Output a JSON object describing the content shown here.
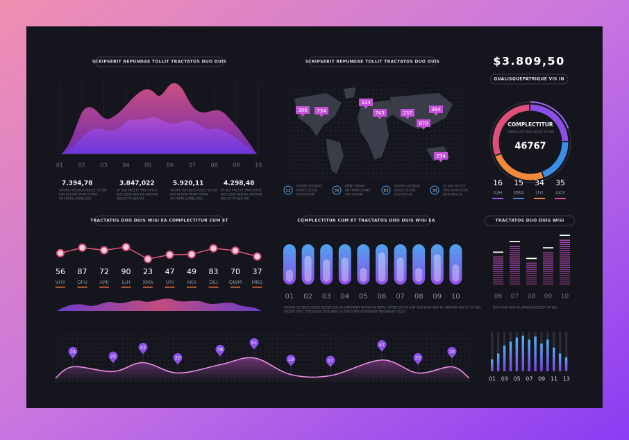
{
  "panels": {
    "area": {
      "title": "SCRIPSERIT REPUNDAE TOLLIT TRACTATOS DUO DUIS",
      "x_labels": [
        "01",
        "02",
        "03",
        "04",
        "05",
        "06",
        "07",
        "08",
        "09",
        "10"
      ],
      "stats": [
        {
          "value": "7.394,78",
          "note": [
            "CHORO VOCIBUS ADOLE SCENS",
            "EOS IN EUM PRINT RITANI",
            "AN FERRI LATINE EOS"
          ]
        },
        {
          "value": "3.847,022",
          "note": [
            "AT SEA FACETE TRACTATOS",
            "DUO DUIS WISI EA APERIAN",
            "DES ET AT SEA VIS"
          ]
        },
        {
          "value": "5.920,11",
          "note": [
            "CHORO VOCIBUS ADOLE SCENS",
            "EOS IN EUM PRINT RITANI",
            "AN FERRI LATINE EOS"
          ]
        },
        {
          "value": "4.298,48",
          "note": [
            "AT SEA FACETE TRACTATOS",
            "DUO DUIS WISI EA APERIAN",
            "DES ET AT SEA VIS"
          ]
        }
      ]
    },
    "map": {
      "title": "SCRIPSERIT REPUNDAE TOLLIT TRACTATOS DUO DUIS",
      "pins": [
        386,
        734,
        224,
        745,
        237,
        384,
        870,
        294
      ],
      "legend": [
        {
          "value": 12,
          "note": [
            "CHORO VOCIBUS",
            "ADOLE SCENS",
            "EOS IN EUM"
          ]
        },
        {
          "value": 35,
          "note": [
            "PRINT RITANI",
            "AN FERRI LATINE",
            "EOS IN EUM"
          ]
        },
        {
          "value": 63,
          "note": [
            "CHORO VOCIBUS",
            "ADOLE SCENS",
            "EOS IN EUM"
          ]
        },
        {
          "value": 38,
          "note": [
            "AT SEA FACETE",
            "TRACTATOS DUO",
            "DUIS WISI EA"
          ]
        }
      ]
    },
    "total": {
      "amount": "$3.809,50",
      "caption": "QUALISQUEPATRIQUE VIS IN",
      "donut": {
        "title": "COMPLECTITUR",
        "subtitle": "CHORO VOCIBUS ADOLE SCENS",
        "value": 46767
      },
      "stats": [
        {
          "value": 16,
          "label": "IUH"
        },
        {
          "value": 15,
          "label": "XMA"
        },
        {
          "value": 34,
          "label": "UYI"
        },
        {
          "value": 35,
          "label": "AKX"
        }
      ]
    },
    "points": {
      "title": "TRACTATOS DUO DUIS WISI EA COMPLECTITUR CUM ET",
      "values": [
        56,
        87,
        72,
        90,
        23,
        47,
        49,
        83,
        70,
        37
      ],
      "labels": [
        "VHY",
        "OFU",
        "AMJ",
        "IUH",
        "XMA",
        "UYI",
        "AKX",
        "DIU",
        "QWM",
        "MNS"
      ]
    },
    "pills": {
      "title": "COMPLECTITUR CUM ET TRACTATOS DUO DUIS WISI EA",
      "labels": [
        "01",
        "02",
        "03",
        "04",
        "05",
        "06",
        "07",
        "08",
        "09",
        "10"
      ],
      "levels": [
        35,
        75,
        65,
        70,
        40,
        85,
        70,
        40,
        80,
        50
      ],
      "note": [
        "CHORO VOCIBUS ADOLE SCENS EOS IN EUM PRINT RITANI AN FERRI LATINE EOS IN EUM DUO DUIS WISI EA APERIAN DES ET AT SEA",
        "FACETE TRAC TATOS DUO DUIS WISI EA ANTIO PAX SCRIPSERIT REPUNDAE TOLLIT"
      ]
    },
    "equalizer": {
      "title": "TRACTATOS DUO DUIS WISI",
      "labels": [
        "06",
        "07",
        "08",
        "09",
        "10"
      ],
      "levels": [
        45,
        62,
        35,
        52,
        72
      ],
      "note": "DUO DUIS WISI EA APERIAN DES ET AT SEA"
    },
    "wave": {
      "values": [
        34,
        25,
        42,
        22,
        38,
        51,
        19,
        17,
        47,
        22,
        34
      ]
    },
    "bars": {
      "labels": [
        "01",
        "03",
        "05",
        "07",
        "09",
        "11",
        "13"
      ],
      "levels": [
        30,
        45,
        65,
        75,
        85,
        90,
        80,
        88,
        70,
        80,
        60,
        45,
        35
      ]
    }
  }
}
